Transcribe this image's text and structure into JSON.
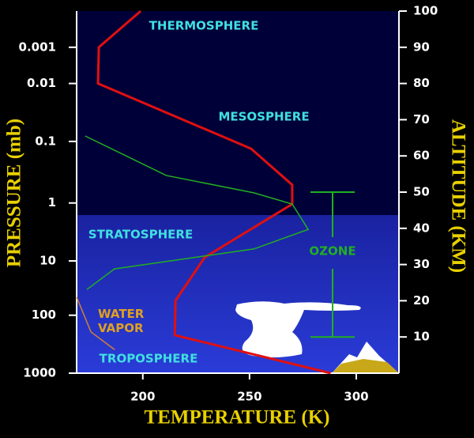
{
  "chart_data": {
    "type": "line",
    "xlabel": "TEMPERATURE (K)",
    "ylabel": "ALTITUDE (KM)",
    "y2label": "PRESSURE (mb)",
    "xlim": [
      169,
      320
    ],
    "xticks": [
      200,
      250,
      300
    ],
    "ylim": [
      0,
      100
    ],
    "yticks": [
      10,
      20,
      30,
      40,
      50,
      60,
      70,
      80,
      90,
      100
    ],
    "y2ticks": [
      1000,
      100,
      10,
      1,
      0.1,
      0.01,
      0.001
    ],
    "y2ticks_altitude": [
      0,
      16,
      31,
      47,
      64,
      80,
      90
    ],
    "series": [
      {
        "name": "Temperature",
        "color": "#e01010",
        "x": [
          199,
          179.4,
          179,
          250.7,
          270,
          270,
          229,
          215.3,
          215,
          288
        ],
        "values": [
          100,
          90,
          80,
          62,
          52,
          46.7,
          32,
          20,
          10.5,
          0
        ]
      },
      {
        "name": "OZONE",
        "color": "#20b020",
        "x": [
          173,
          211,
          252,
          270,
          277.5,
          252,
          186.7,
          173.8
        ],
        "values": [
          65.5,
          54.6,
          49.8,
          46.7,
          39.7,
          34.3,
          28.8,
          23.1
        ]
      },
      {
        "name": "WATER VAPOR",
        "color": "#d08030",
        "x": [
          169,
          175.7,
          186.8
        ],
        "values": [
          21,
          11.4,
          6.5
        ]
      }
    ],
    "ozone_layer": [
      10,
      50
    ],
    "layers": [
      "THERMOSPHERE",
      "MESOSPHERE",
      "STRATOSPHERE",
      "TROPOSPHERE"
    ]
  }
}
